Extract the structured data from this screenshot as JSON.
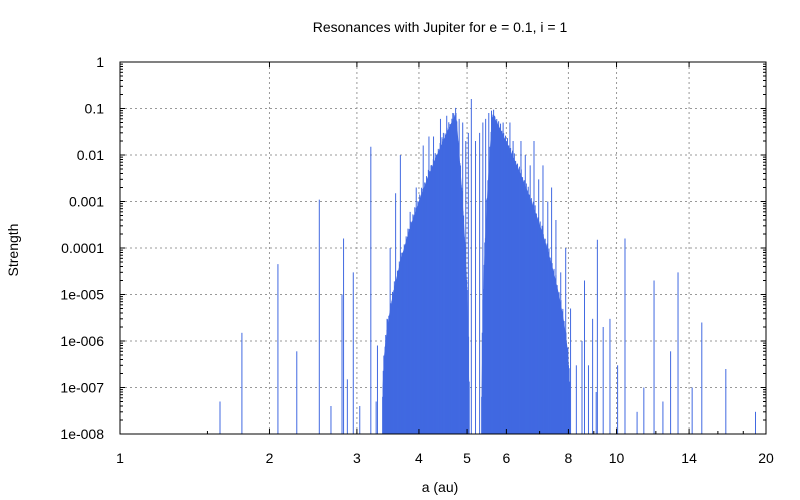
{
  "chart_data": {
    "type": "bar",
    "title": "Resonances with Jupiter for e = 0.1, i = 1",
    "xlabel": "a (au)",
    "ylabel": "Strength",
    "x_scale": "log",
    "y_scale": "log",
    "xlim": [
      1,
      20
    ],
    "ylim": [
      1e-08,
      1
    ],
    "xticks": [
      1,
      2,
      3,
      4,
      5,
      6,
      8,
      10,
      14,
      20
    ],
    "xtick_labels": [
      "1",
      "2",
      "3",
      "4",
      "5",
      "6",
      "8",
      "10",
      "14",
      "20"
    ],
    "yticks": [
      1e-08,
      1e-07,
      1e-06,
      1e-05,
      0.0001,
      0.001,
      0.01,
      0.1,
      1
    ],
    "ytick_labels": [
      "1e-008",
      "1e-007",
      "1e-006",
      "1e-005",
      "0.0001",
      "0.001",
      "0.01",
      "0.1",
      "1"
    ],
    "grid": true,
    "color": "#4169E1",
    "series": [
      {
        "x": [
          1.59,
          1.76,
          2.08,
          2.27,
          2.52,
          2.66,
          2.8,
          2.82,
          2.87,
          2.95,
          3.04,
          3.2,
          3.28,
          3.3,
          3.41,
          3.45,
          3.5,
          3.53,
          3.59,
          3.63,
          3.67,
          3.72,
          3.77,
          3.8,
          3.84,
          3.9,
          3.95,
          4.02,
          4.08,
          4.13,
          4.19,
          4.23,
          4.28,
          4.35,
          4.42,
          4.48,
          4.55,
          4.61,
          4.68,
          4.75,
          4.82,
          4.9,
          4.97,
          5.03,
          5.1,
          5.2,
          5.3,
          5.38,
          5.45,
          5.53,
          5.6,
          5.68,
          5.75,
          5.83,
          5.91,
          6.0,
          6.1,
          6.19,
          6.3,
          6.42,
          6.55,
          6.7,
          6.82,
          6.97,
          7.11,
          7.27,
          7.4,
          7.55,
          7.72,
          7.9,
          8.08,
          8.3,
          8.52,
          8.62,
          8.78,
          8.95,
          9.1,
          9.15,
          9.4,
          9.7,
          10.05,
          10.4,
          11.0,
          11.35,
          11.9,
          12.4,
          12.85,
          13.3,
          14.2,
          14.85,
          16.6,
          19.05
        ],
        "y": [
          5e-08,
          1.5e-06,
          4.5e-05,
          6e-07,
          0.0011,
          4e-08,
          1e-05,
          0.00016,
          1.5e-07,
          3e-05,
          4e-08,
          0.015,
          5e-08,
          8e-07,
          3e-07,
          3e-06,
          0.0001,
          2e-07,
          0.0015,
          5e-06,
          0.01,
          3e-07,
          8e-05,
          4e-06,
          0.0006,
          1e-05,
          0.002,
          2e-06,
          0.016,
          0.0006,
          0.025,
          0.006,
          0.025,
          0.008,
          0.06,
          0.03,
          0.07,
          0.04,
          0.08,
          0.08,
          0.06,
          0.05,
          0.02,
          0.03,
          0.16,
          0.02,
          0.03,
          0.05,
          0.06,
          0.08,
          0.09,
          0.07,
          0.05,
          0.03,
          0.05,
          0.02,
          0.05,
          0.02,
          0.006,
          0.02,
          0.01,
          0.006,
          0.02,
          0.003,
          0.006,
          0.001,
          0.002,
          0.0004,
          3e-05,
          0.0001,
          5e-06,
          3e-07,
          1e-06,
          2e-05,
          3e-07,
          3e-06,
          8e-08,
          0.00015,
          2e-06,
          3e-06,
          3e-07,
          0.00016,
          3e-08,
          1e-07,
          2e-05,
          5e-08,
          6e-07,
          3e-05,
          1e-07,
          2.5e-06,
          2.5e-07,
          3e-08
        ]
      },
      {
        "dense_bands": [
          {
            "x_start": 3.38,
            "x_end": 5.05,
            "peak_x": 4.75,
            "peak_y": 0.08,
            "base_y": 1e-07
          },
          {
            "x_start": 5.35,
            "x_end": 8.05,
            "peak_x": 5.62,
            "peak_y": 0.08,
            "base_y": 1e-07
          }
        ]
      }
    ]
  }
}
